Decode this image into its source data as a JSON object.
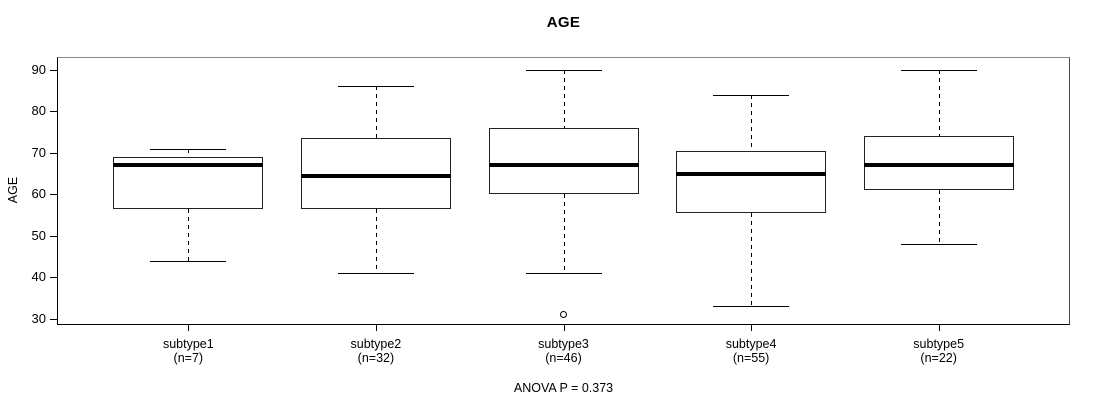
{
  "chart_data": {
    "type": "boxplot",
    "title": "AGE",
    "ylabel": "AGE",
    "annotation": "ANOVA P = 0.373",
    "y_ticks": [
      30,
      40,
      50,
      60,
      70,
      80,
      90
    ],
    "ylim": [
      28.5,
      93.1
    ],
    "grid": false,
    "groups": [
      {
        "label": "subtype1",
        "sublabel": "(n=7)",
        "n": 7,
        "whisker_low": 44,
        "q1": 56.5,
        "median": 67,
        "q3": 69,
        "whisker_high": 71,
        "outliers": []
      },
      {
        "label": "subtype2",
        "sublabel": "(n=32)",
        "n": 32,
        "whisker_low": 41,
        "q1": 56.5,
        "median": 64.5,
        "q3": 73.5,
        "whisker_high": 86,
        "outliers": []
      },
      {
        "label": "subtype3",
        "sublabel": "(n=46)",
        "n": 46,
        "whisker_low": 41,
        "q1": 60,
        "median": 67,
        "q3": 76,
        "whisker_high": 90,
        "outliers": [
          31
        ]
      },
      {
        "label": "subtype4",
        "sublabel": "(n=55)",
        "n": 55,
        "whisker_low": 33,
        "q1": 55.5,
        "median": 65,
        "q3": 70.5,
        "whisker_high": 84,
        "outliers": []
      },
      {
        "label": "subtype5",
        "sublabel": "(n=22)",
        "n": 22,
        "whisker_low": 48,
        "q1": 61,
        "median": 67,
        "q3": 74,
        "whisker_high": 90,
        "outliers": []
      }
    ]
  }
}
